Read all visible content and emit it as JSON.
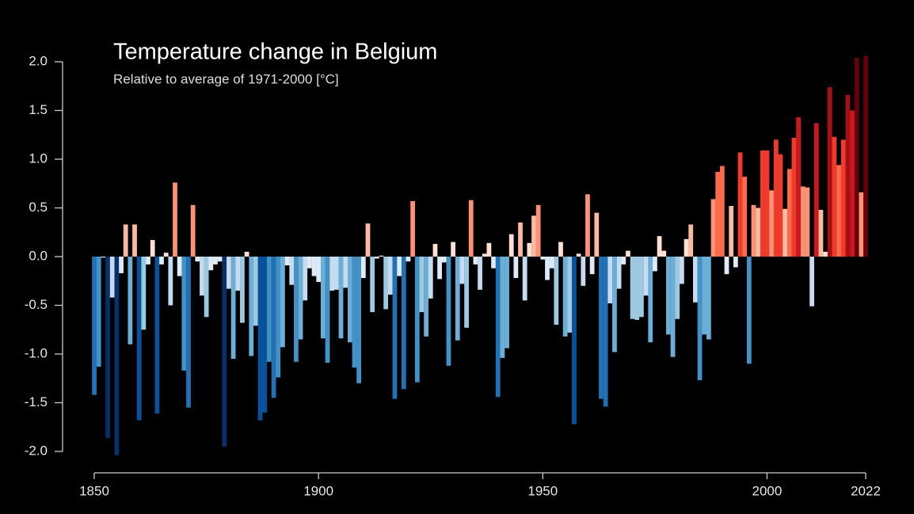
{
  "chart_data": {
    "type": "bar",
    "title": "Temperature change in Belgium",
    "subtitle": "Relative to average of 1971-2000  [°C]",
    "x": [
      1850,
      1851,
      1852,
      1853,
      1854,
      1855,
      1856,
      1857,
      1858,
      1859,
      1860,
      1861,
      1862,
      1863,
      1864,
      1865,
      1866,
      1867,
      1868,
      1869,
      1870,
      1871,
      1872,
      1873,
      1874,
      1875,
      1876,
      1877,
      1878,
      1879,
      1880,
      1881,
      1882,
      1883,
      1884,
      1885,
      1886,
      1887,
      1888,
      1889,
      1890,
      1891,
      1892,
      1893,
      1894,
      1895,
      1896,
      1897,
      1898,
      1899,
      1900,
      1901,
      1902,
      1903,
      1904,
      1905,
      1906,
      1907,
      1908,
      1909,
      1910,
      1911,
      1912,
      1913,
      1914,
      1915,
      1916,
      1917,
      1918,
      1919,
      1920,
      1921,
      1922,
      1923,
      1924,
      1925,
      1926,
      1927,
      1928,
      1929,
      1930,
      1931,
      1932,
      1933,
      1934,
      1935,
      1936,
      1937,
      1938,
      1939,
      1940,
      1941,
      1942,
      1943,
      1944,
      1945,
      1946,
      1947,
      1948,
      1949,
      1950,
      1951,
      1952,
      1953,
      1954,
      1955,
      1956,
      1957,
      1958,
      1959,
      1960,
      1961,
      1962,
      1963,
      1964,
      1965,
      1966,
      1967,
      1968,
      1969,
      1970,
      1971,
      1972,
      1973,
      1974,
      1975,
      1976,
      1977,
      1978,
      1979,
      1980,
      1981,
      1982,
      1983,
      1984,
      1985,
      1986,
      1987,
      1988,
      1989,
      1990,
      1991,
      1992,
      1993,
      1994,
      1995,
      1996,
      1997,
      1998,
      1999,
      2000,
      2001,
      2002,
      2003,
      2004,
      2005,
      2006,
      2007,
      2008,
      2009,
      2010,
      2011,
      2012,
      2013,
      2014,
      2015,
      2016,
      2017,
      2018,
      2019,
      2020,
      2021,
      2022
    ],
    "values": [
      -1.42,
      -1.13,
      -0.01,
      -1.86,
      -0.42,
      -2.04,
      -0.17,
      0.33,
      -0.9,
      0.33,
      -1.68,
      -0.75,
      -0.08,
      0.17,
      -1.61,
      -0.08,
      0.04,
      -0.5,
      0.76,
      -0.2,
      -1.17,
      -1.55,
      0.53,
      -0.05,
      -0.4,
      -0.62,
      -0.14,
      -0.08,
      -0.05,
      -1.95,
      -0.33,
      -1.05,
      -0.35,
      -0.68,
      0.05,
      -1.02,
      -0.71,
      -1.68,
      -1.6,
      -1.08,
      -1.45,
      -1.24,
      -0.93,
      -0.09,
      -0.29,
      -1.08,
      -0.85,
      -0.45,
      -0.12,
      -0.2,
      -0.26,
      -0.84,
      -1.09,
      -0.35,
      -0.34,
      -0.84,
      -0.32,
      -0.88,
      -1.14,
      -1.3,
      -0.22,
      0.34,
      -0.57,
      -0.02,
      0.01,
      -0.54,
      -0.39,
      -1.46,
      -0.2,
      -1.36,
      -0.05,
      0.57,
      -1.29,
      -0.57,
      -0.82,
      -0.43,
      0.13,
      -0.23,
      -0.06,
      -1.12,
      0.15,
      -0.86,
      -0.28,
      -0.73,
      0.58,
      -0.08,
      -0.34,
      0.03,
      0.14,
      -0.12,
      -1.44,
      -1.04,
      -0.94,
      0.23,
      -0.22,
      0.35,
      -0.45,
      0.14,
      0.42,
      0.53,
      -0.03,
      -0.24,
      -0.12,
      -0.7,
      0.15,
      -0.82,
      -0.78,
      -1.72,
      0.03,
      -0.3,
      0.64,
      -0.18,
      0.45,
      -1.46,
      -1.54,
      -0.48,
      -0.98,
      -0.33,
      -0.08,
      0.06,
      -0.64,
      -0.65,
      -0.62,
      -0.4,
      -0.88,
      -0.15,
      0.21,
      0.06,
      -0.8,
      -1.03,
      -0.64,
      -0.28,
      0.18,
      0.33,
      -0.47,
      -1.27,
      -0.8,
      -0.85,
      0.59,
      0.87,
      0.93,
      -0.18,
      0.52,
      -0.11,
      1.07,
      0.82,
      -1.1,
      0.53,
      0.5,
      1.09,
      1.09,
      0.68,
      1.2,
      1.05,
      0.49,
      0.9,
      1.22,
      1.43,
      0.72,
      0.71,
      -0.51,
      1.37,
      0.48,
      0.05,
      1.74,
      1.23,
      0.94,
      1.2,
      1.66,
      1.5,
      2.04,
      0.66,
      2.06
    ],
    "xlim": [
      1850,
      2022
    ],
    "xticks": [
      1850,
      1900,
      1950,
      2000,
      2022
    ],
    "ylim": [
      -2.0,
      2.0
    ],
    "yticks": [
      {
        "value": 2.0,
        "label": "2.0"
      },
      {
        "value": 1.5,
        "label": "1.5"
      },
      {
        "value": 1.0,
        "label": "1.0"
      },
      {
        "value": 0.5,
        "label": "0.5"
      },
      {
        "value": 0.0,
        "label": "0.0"
      },
      {
        "value": -0.5,
        "label": "-0.5"
      },
      {
        "value": -1.0,
        "label": "-1.0"
      },
      {
        "value": -1.5,
        "label": "-1.5"
      },
      {
        "value": -2.0,
        "label": "-2.0"
      }
    ],
    "colormap": [
      "#08306b",
      "#08519c",
      "#2171b5",
      "#4292c6",
      "#6baed6",
      "#9ecae1",
      "#c6dbef",
      "#deebf7",
      "#fee0d2",
      "#fcbba1",
      "#fc9272",
      "#fb6a4a",
      "#ef3b2c",
      "#cb181d",
      "#a50f15",
      "#67000d"
    ],
    "color_range": [
      -2.1,
      2.1
    ],
    "grid": false
  }
}
